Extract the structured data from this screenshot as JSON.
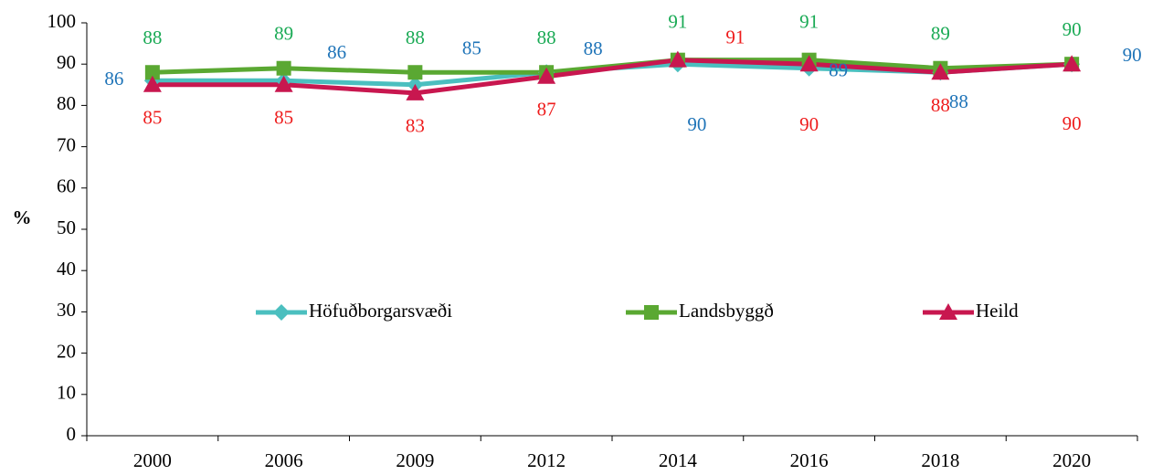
{
  "chart_data": {
    "type": "line",
    "y_label": "%",
    "categories": [
      "2000",
      "2006",
      "2009",
      "2012",
      "2014",
      "2016",
      "2018",
      "2020"
    ],
    "series": [
      {
        "name": "Höfuðborgarsvæði",
        "color": "#4bbfbf",
        "label_color": "#1f74b8",
        "marker": "diamond",
        "values": [
          86,
          86,
          85,
          88,
          90,
          89,
          88,
          90
        ]
      },
      {
        "name": "Landsbyggð",
        "color": "#5aa832",
        "label_color": "#1aaa55",
        "marker": "square",
        "values": [
          88,
          89,
          88,
          88,
          91,
          91,
          89,
          90
        ]
      },
      {
        "name": "Heild",
        "color": "#c8174f",
        "label_color": "#ee1c1c",
        "marker": "triangle",
        "values": [
          85,
          85,
          83,
          87,
          91,
          90,
          88,
          90
        ]
      }
    ],
    "ylim": [
      0,
      100
    ],
    "yticks": [
      0,
      10,
      20,
      30,
      40,
      50,
      60,
      70,
      80,
      90,
      100
    ],
    "grid": false,
    "legend": "center"
  }
}
